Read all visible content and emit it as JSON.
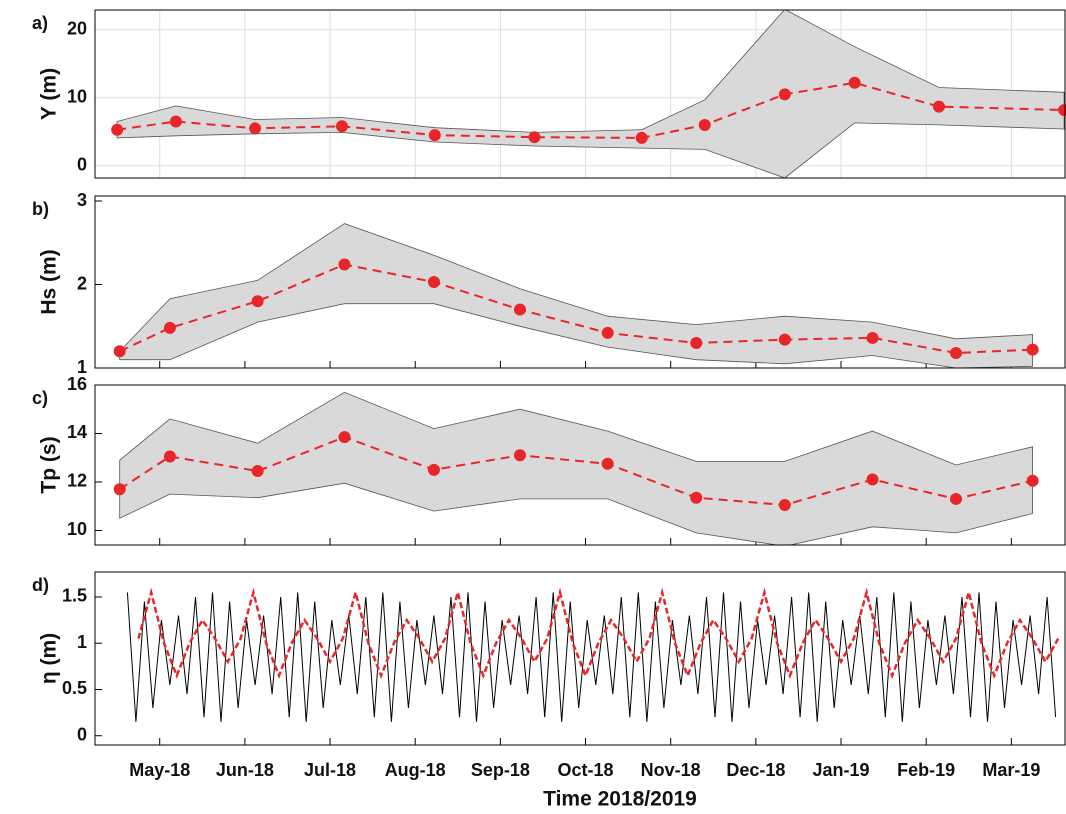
{
  "chart_data": [
    {
      "type": "band-line",
      "label": "a)",
      "ylabel": "Y (m)",
      "xlim": [
        4.24,
        15.63
      ],
      "ylim": [
        -1.8,
        22.9
      ],
      "yticks": [
        0,
        10,
        20
      ],
      "grid": true,
      "color": "#e8262a",
      "band_color": "#d9d9d9",
      "x": [
        4.5,
        5.19,
        6.12,
        7.14,
        8.23,
        9.4,
        10.66,
        11.4,
        12.34,
        13.16,
        14.15,
        15.62
      ],
      "values": [
        5.3,
        6.5,
        5.5,
        5.8,
        4.5,
        4.2,
        4.1,
        6.0,
        10.5,
        12.2,
        8.7,
        8.2
      ],
      "upper": [
        6.5,
        8.8,
        6.8,
        7.1,
        5.6,
        4.9,
        5.3,
        9.7,
        23.0,
        17.5,
        11.5,
        10.8
      ],
      "lower": [
        4.1,
        4.4,
        4.7,
        4.9,
        3.5,
        2.9,
        2.6,
        2.4,
        -1.8,
        6.3,
        6.0,
        5.4
      ]
    },
    {
      "type": "band-line",
      "label": "b)",
      "ylabel": "Hs (m)",
      "xlim": [
        4.24,
        15.63
      ],
      "ylim": [
        1,
        3.06
      ],
      "yticks": [
        1,
        2,
        3
      ],
      "grid": false,
      "color": "#e8262a",
      "band_color": "#d9d9d9",
      "x": [
        4.53,
        5.12,
        6.15,
        7.17,
        8.22,
        9.23,
        10.26,
        11.3,
        12.34,
        13.37,
        14.35,
        15.25
      ],
      "values": [
        1.2,
        1.48,
        1.8,
        2.24,
        2.03,
        1.7,
        1.42,
        1.3,
        1.34,
        1.36,
        1.18,
        1.22
      ],
      "upper": [
        1.2,
        1.83,
        2.05,
        2.73,
        2.35,
        1.95,
        1.62,
        1.52,
        1.62,
        1.55,
        1.35,
        1.4
      ],
      "lower": [
        1.1,
        1.1,
        1.55,
        1.77,
        1.77,
        1.5,
        1.25,
        1.1,
        1.05,
        1.15,
        1.0,
        1.02
      ]
    },
    {
      "type": "band-line",
      "label": "c)",
      "ylabel": "Tp (s)",
      "xlim": [
        4.24,
        15.63
      ],
      "ylim": [
        9.4,
        16
      ],
      "yticks": [
        10,
        12,
        14,
        16
      ],
      "grid": false,
      "color": "#e8262a",
      "band_color": "#d9d9d9",
      "x": [
        4.53,
        5.12,
        6.15,
        7.17,
        8.22,
        9.23,
        10.26,
        11.3,
        12.34,
        13.37,
        14.35,
        15.25
      ],
      "values": [
        11.7,
        13.05,
        12.45,
        13.85,
        12.5,
        13.1,
        12.75,
        11.35,
        11.05,
        12.1,
        11.3,
        12.05
      ],
      "upper": [
        12.9,
        14.6,
        13.6,
        15.7,
        14.2,
        15.0,
        14.1,
        12.85,
        12.85,
        14.1,
        12.7,
        13.45
      ],
      "lower": [
        10.5,
        11.5,
        11.35,
        11.95,
        10.8,
        11.3,
        11.3,
        9.9,
        9.35,
        10.15,
        9.9,
        10.7
      ]
    },
    {
      "type": "line",
      "label": "d)",
      "ylabel": "η (m)",
      "xlabel": "Time 2018/2019",
      "xlim": [
        4.24,
        15.63
      ],
      "ylim": [
        -0.1,
        1.77
      ],
      "yticks": [
        0,
        0.5,
        1,
        1.5
      ],
      "grid": false,
      "xticks": [
        {
          "value": 5,
          "label": "May-18"
        },
        {
          "value": 6,
          "label": "Jun-18"
        },
        {
          "value": 7,
          "label": "Jul-18"
        },
        {
          "value": 8,
          "label": "Aug-18"
        },
        {
          "value": 9,
          "label": "Sep-18"
        },
        {
          "value": 10,
          "label": "Oct-18"
        },
        {
          "value": 11,
          "label": "Nov-18"
        },
        {
          "value": 12,
          "label": "Dec-18"
        },
        {
          "value": 13,
          "label": "Jan-19"
        },
        {
          "value": 14,
          "label": "Feb-19"
        },
        {
          "value": 15,
          "label": "Mar-19"
        }
      ],
      "series": [
        {
          "color": "#000000",
          "x": [
            4.62,
            4.72,
            4.82,
            4.92,
            5.02,
            5.12,
            5.22,
            5.32,
            5.42,
            5.52,
            5.62,
            5.72,
            5.82,
            5.92,
            6.02,
            6.12,
            6.22,
            6.32,
            6.42,
            6.52,
            6.62,
            6.72,
            6.82,
            6.92,
            7.02,
            7.12,
            7.22,
            7.32,
            7.42,
            7.52,
            7.62,
            7.72,
            7.82,
            7.92,
            8.02,
            8.12,
            8.22,
            8.32,
            8.42,
            8.52,
            8.62,
            8.72,
            8.82,
            8.92,
            9.02,
            9.12,
            9.22,
            9.32,
            9.42,
            9.52,
            9.62,
            9.72,
            9.82,
            9.92,
            10.02,
            10.12,
            10.22,
            10.32,
            10.42,
            10.52,
            10.62,
            10.72,
            10.82,
            10.92,
            11.02,
            11.12,
            11.22,
            11.32,
            11.42,
            11.52,
            11.62,
            11.72,
            11.82,
            11.92,
            12.02,
            12.12,
            12.22,
            12.32,
            12.42,
            12.52,
            12.62,
            12.72,
            12.82,
            12.92,
            13.02,
            13.12,
            13.22,
            13.32,
            13.42,
            13.52,
            13.62,
            13.72,
            13.82,
            13.92,
            14.02,
            14.12,
            14.22,
            14.32,
            14.42,
            14.52,
            14.62,
            14.72,
            14.82,
            14.92,
            15.02,
            15.12,
            15.22,
            15.32,
            15.42,
            15.52
          ],
          "values": [
            1.55,
            0.15,
            1.45,
            0.3,
            1.25,
            0.55,
            1.3,
            0.45,
            1.5,
            0.2,
            1.55,
            0.15,
            1.45,
            0.3,
            1.25,
            0.55,
            1.3,
            0.45,
            1.5,
            0.2,
            1.55,
            0.15,
            1.45,
            0.3,
            1.25,
            0.55,
            1.3,
            0.45,
            1.5,
            0.2,
            1.55,
            0.15,
            1.45,
            0.3,
            1.25,
            0.55,
            1.3,
            0.45,
            1.5,
            0.2,
            1.55,
            0.15,
            1.45,
            0.3,
            1.25,
            0.55,
            1.3,
            0.45,
            1.5,
            0.2,
            1.55,
            0.15,
            1.45,
            0.3,
            1.25,
            0.55,
            1.3,
            0.45,
            1.5,
            0.2,
            1.55,
            0.15,
            1.45,
            0.3,
            1.25,
            0.55,
            1.3,
            0.45,
            1.5,
            0.2,
            1.55,
            0.15,
            1.45,
            0.3,
            1.25,
            0.55,
            1.3,
            0.45,
            1.5,
            0.2,
            1.55,
            0.15,
            1.45,
            0.3,
            1.25,
            0.55,
            1.3,
            0.45,
            1.5,
            0.2,
            1.55,
            0.15,
            1.45,
            0.3,
            1.25,
            0.55,
            1.3,
            0.45,
            1.5,
            0.2,
            1.55,
            0.15,
            1.45,
            0.3,
            1.25,
            0.55,
            1.3,
            0.45,
            1.5,
            0.2
          ]
        },
        {
          "color": "#e8262a",
          "x": [
            4.75,
            4.9,
            5.05,
            5.2,
            5.35,
            5.5,
            5.65,
            5.8,
            5.95,
            6.1,
            6.25,
            6.4,
            6.55,
            6.7,
            6.85,
            7.0,
            7.15,
            7.3,
            7.45,
            7.6,
            7.75,
            7.9,
            8.05,
            8.2,
            8.35,
            8.5,
            8.65,
            8.8,
            8.95,
            9.1,
            9.25,
            9.4,
            9.55,
            9.7,
            9.85,
            10.0,
            10.15,
            10.3,
            10.45,
            10.6,
            10.75,
            10.9,
            11.05,
            11.2,
            11.35,
            11.5,
            11.65,
            11.8,
            11.95,
            12.1,
            12.25,
            12.4,
            12.55,
            12.7,
            12.85,
            13.0,
            13.15,
            13.3,
            13.45,
            13.6,
            13.75,
            13.9,
            14.05,
            14.2,
            14.35,
            14.5,
            14.65,
            14.8,
            14.95,
            15.1,
            15.25,
            15.4,
            15.55
          ],
          "values": [
            1.05,
            1.55,
            1.0,
            0.65,
            1.0,
            1.25,
            1.05,
            0.8,
            1.05,
            1.55,
            1.0,
            0.65,
            1.0,
            1.25,
            1.05,
            0.8,
            1.05,
            1.55,
            1.0,
            0.65,
            1.0,
            1.25,
            1.05,
            0.8,
            1.05,
            1.55,
            1.0,
            0.65,
            1.0,
            1.25,
            1.05,
            0.8,
            1.05,
            1.55,
            1.0,
            0.65,
            1.0,
            1.25,
            1.05,
            0.8,
            1.05,
            1.55,
            1.0,
            0.65,
            1.0,
            1.25,
            1.05,
            0.8,
            1.05,
            1.55,
            1.0,
            0.65,
            1.0,
            1.25,
            1.05,
            0.8,
            1.05,
            1.55,
            1.0,
            0.65,
            1.0,
            1.25,
            1.05,
            0.8,
            1.05,
            1.55,
            1.0,
            0.65,
            1.0,
            1.25,
            1.05,
            0.8,
            1.05
          ]
        }
      ]
    }
  ]
}
